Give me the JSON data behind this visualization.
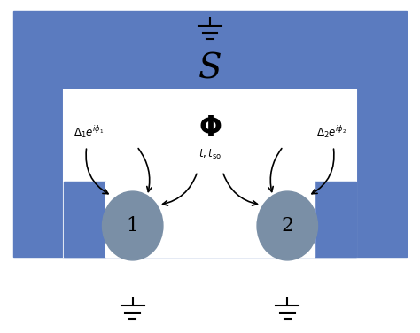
{
  "bg_color": "#ffffff",
  "blue_color": "#5b7bbf",
  "dot_color": "#7a8fa6",
  "fig_width": 4.74,
  "fig_height": 3.76,
  "superconductor_label": "S",
  "flux_label": "$\\mathbf{\\Phi}$",
  "dot1_label": "1",
  "dot2_label": "2",
  "coupling_left": "$\\Delta_1 e^{i\\phi_1}$",
  "coupling_right": "$\\Delta_2 e^{i\\phi_2}$",
  "coupling_middle": "$t, t_{\\mathrm{so}}$"
}
